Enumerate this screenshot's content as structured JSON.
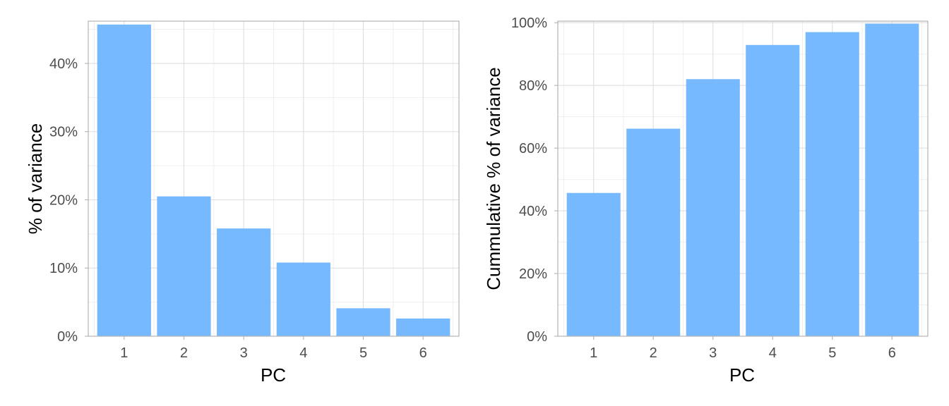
{
  "chart_data": [
    {
      "type": "bar",
      "title": "",
      "xlabel": "PC",
      "ylabel": "% of variance",
      "categories": [
        "1",
        "2",
        "3",
        "4",
        "5",
        "6"
      ],
      "values": [
        45.7,
        20.5,
        15.8,
        10.8,
        4.1,
        2.6
      ],
      "ylim": [
        0,
        46.2
      ],
      "y_ticks": [
        0,
        10,
        20,
        30,
        40
      ],
      "y_tick_labels": [
        "0%",
        "10%",
        "20%",
        "30%",
        "40%"
      ],
      "grid": true,
      "bar_color": "#70b5ff",
      "bar_opacity": 0.95
    },
    {
      "type": "bar",
      "title": "",
      "xlabel": "PC",
      "ylabel": "Cummulative % of variance",
      "categories": [
        "1",
        "2",
        "3",
        "4",
        "5",
        "6"
      ],
      "values": [
        45.7,
        66.2,
        82.0,
        92.9,
        97.0,
        99.7
      ],
      "ylim": [
        0,
        100.5
      ],
      "y_ticks": [
        0,
        20,
        40,
        60,
        80,
        100
      ],
      "y_tick_labels": [
        "0%",
        "20%",
        "40%",
        "60%",
        "80%",
        "100%"
      ],
      "grid": true,
      "bar_color": "#70b5ff",
      "bar_opacity": 0.95
    }
  ],
  "colors": {
    "panel_border": "#b3b3b3",
    "grid_major": "#dedede",
    "grid_minor": "#efefef",
    "tick_text": "#4d4d4d",
    "axis_title": "#000000"
  }
}
